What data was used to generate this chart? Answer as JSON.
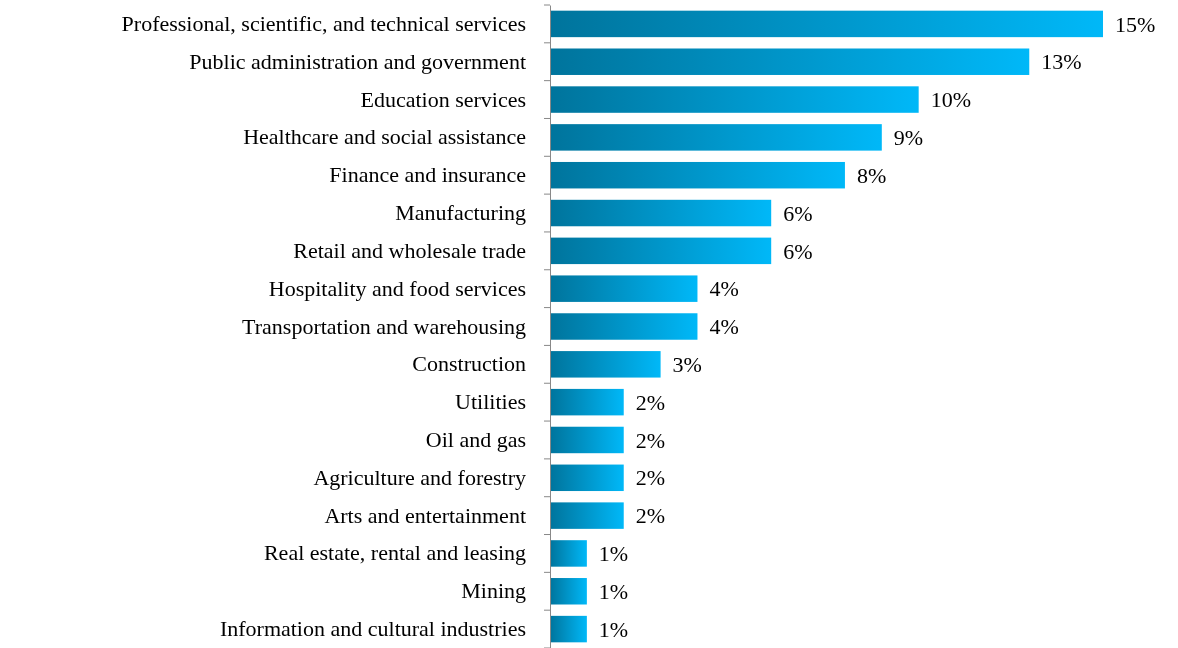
{
  "chart_data": {
    "type": "bar",
    "orientation": "horizontal",
    "categories": [
      "Professional, scientific, and technical services",
      "Public administration and government",
      "Education services",
      "Healthcare and social assistance",
      "Finance and insurance",
      "Manufacturing",
      "Retail and wholesale trade",
      "Hospitality and food services",
      "Transportation and warehousing",
      "Construction",
      "Utilities",
      "Oil and gas",
      "Agriculture and forestry",
      "Arts and entertainment",
      "Real estate, rental and leasing",
      "Mining",
      "Information and cultural industries"
    ],
    "values": [
      15,
      13,
      10,
      9,
      8,
      6,
      6,
      4,
      4,
      3,
      2,
      2,
      2,
      2,
      1,
      1,
      1
    ],
    "value_labels": [
      "15%",
      "13%",
      "10%",
      "9%",
      "8%",
      "6%",
      "6%",
      "4%",
      "4%",
      "3%",
      "2%",
      "2%",
      "2%",
      "2%",
      "1%",
      "1%",
      "1%"
    ],
    "color": "#00b8f8"
  }
}
